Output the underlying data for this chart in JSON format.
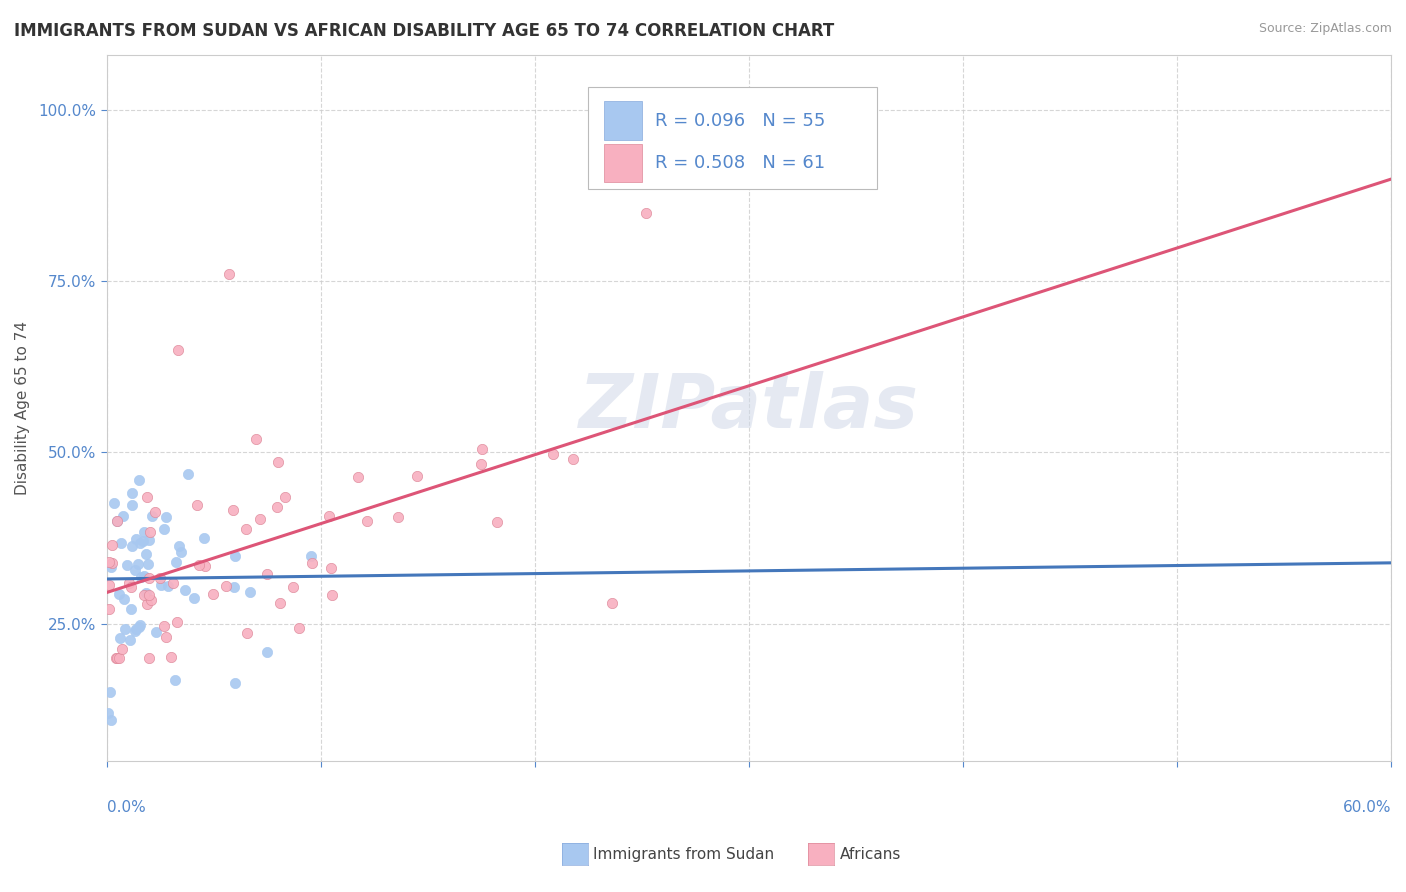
{
  "title": "IMMIGRANTS FROM SUDAN VS AFRICAN DISABILITY AGE 65 TO 74 CORRELATION CHART",
  "source_text": "Source: ZipAtlas.com",
  "ylabel": "Disability Age 65 to 74",
  "series1": {
    "label": "Immigrants from Sudan",
    "R": 0.096,
    "N": 55,
    "color": "#a8c8f0",
    "line_color": "#4477bb"
  },
  "series2": {
    "label": "Africans",
    "R": 0.508,
    "N": 61,
    "color": "#f8b0c0",
    "line_color": "#dd5577"
  },
  "xlim": [
    0.0,
    0.6
  ],
  "ylim": [
    0.05,
    1.08
  ],
  "yticks": [
    0.25,
    0.5,
    0.75,
    1.0
  ],
  "xtick_positions": [
    0.0,
    0.1,
    0.2,
    0.3,
    0.4,
    0.5,
    0.6
  ],
  "watermark": "ZIPatlas",
  "background_color": "#ffffff",
  "grid_color": "#cccccc",
  "title_color": "#333333",
  "axis_tick_color": "#5588cc",
  "ylabel_color": "#555555",
  "source_color": "#999999"
}
